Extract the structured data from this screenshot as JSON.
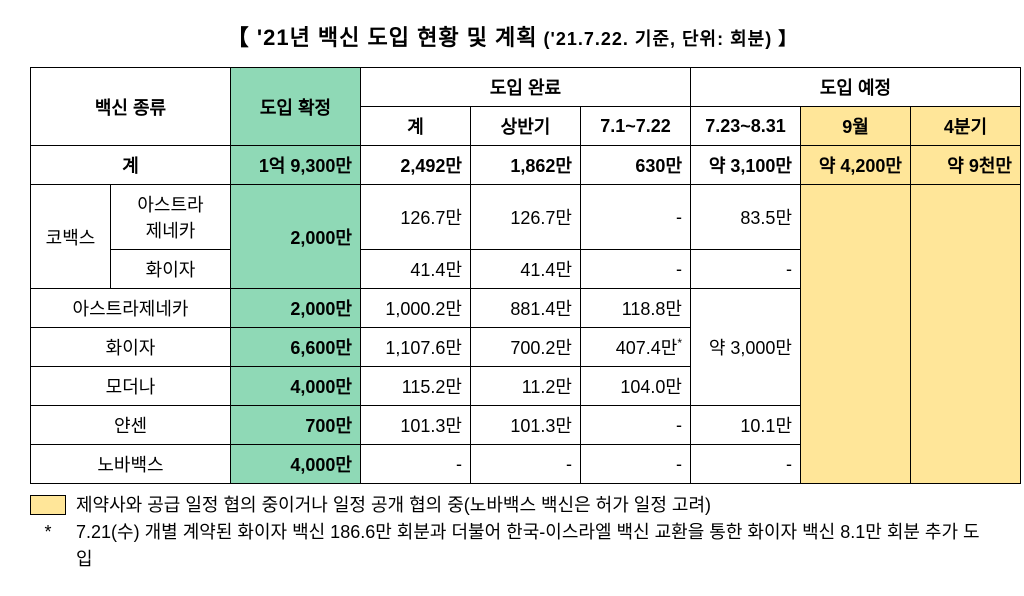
{
  "colors": {
    "green": "#8fd9b6",
    "yellow": "#ffe699",
    "border": "#000000",
    "background": "#ffffff",
    "text": "#000000"
  },
  "typography": {
    "title_fontsize": 22,
    "title_sub_fontsize": 18,
    "cell_fontsize": 18,
    "footnote_fontsize": 18
  },
  "title_main": "【 '21년 백신 도입 현황 및 계획",
  "title_sub": " ('21.7.22. 기준, 단위: 회분) 】",
  "headers": {
    "vaccine_type": "백신 종류",
    "confirmed": "도입 확정",
    "arrived": "도입 완료",
    "planned": "도입 예정",
    "arrived_total": "계",
    "arrived_h1": "상반기",
    "arrived_p2": "7.1~7.22",
    "planned_p1": "7.23~8.31",
    "planned_p2": "9월",
    "planned_p3": "4분기"
  },
  "totals": {
    "label": "계",
    "confirmed": "1억 9,300만",
    "arrived_total": "2,492만",
    "arrived_h1": "1,862만",
    "arrived_p2": "630만",
    "planned_p1": "약 3,100만",
    "planned_p2": "약 4,200만",
    "planned_p3": "약 9천만"
  },
  "rows": [
    {
      "group": "코백스",
      "sub": "아스트라\n제네카",
      "confirmed": "2,000만",
      "arrived_total": "126.7만",
      "arrived_h1": "126.7만",
      "arrived_p2": "-",
      "planned_p1": "83.5만"
    },
    {
      "group": null,
      "sub": "화이자",
      "confirmed": null,
      "arrived_total": "41.4만",
      "arrived_h1": "41.4만",
      "arrived_p2": "-",
      "planned_p1": "-"
    },
    {
      "group": null,
      "sub": "아스트라제네카",
      "confirmed": "2,000만",
      "arrived_total": "1,000.2만",
      "arrived_h1": "881.4만",
      "arrived_p2": "118.8만",
      "planned_p1": null
    },
    {
      "group": null,
      "sub": "화이자",
      "confirmed": "6,600만",
      "arrived_total": "1,107.6만",
      "arrived_h1": "700.2만",
      "arrived_p2": "407.4만",
      "arrived_p2_star": "*",
      "planned_p1": "약 3,000만"
    },
    {
      "group": null,
      "sub": "모더나",
      "confirmed": "4,000만",
      "arrived_total": "115.2만",
      "arrived_h1": "11.2만",
      "arrived_p2": "104.0만",
      "planned_p1": null
    },
    {
      "group": null,
      "sub": "얀센",
      "confirmed": "700만",
      "arrived_total": "101.3만",
      "arrived_h1": "101.3만",
      "arrived_p2": "-",
      "planned_p1": "10.1만"
    },
    {
      "group": null,
      "sub": "노바백스",
      "confirmed": "4,000만",
      "arrived_total": "-",
      "arrived_h1": "-",
      "arrived_p2": "-",
      "planned_p1": "-"
    }
  ],
  "footnotes": {
    "line1": "제약사와 공급 일정 협의 중이거나 일정 공개 협의 중(노바백스 백신은 허가 일정 고려)",
    "line2": "7.21(수) 개별 계약된 화이자 백신 186.6만 회분과 더불어 한국-이스라엘 백신 교환을 통한 화이자 백신 8.1만 회분 추가 도입"
  }
}
